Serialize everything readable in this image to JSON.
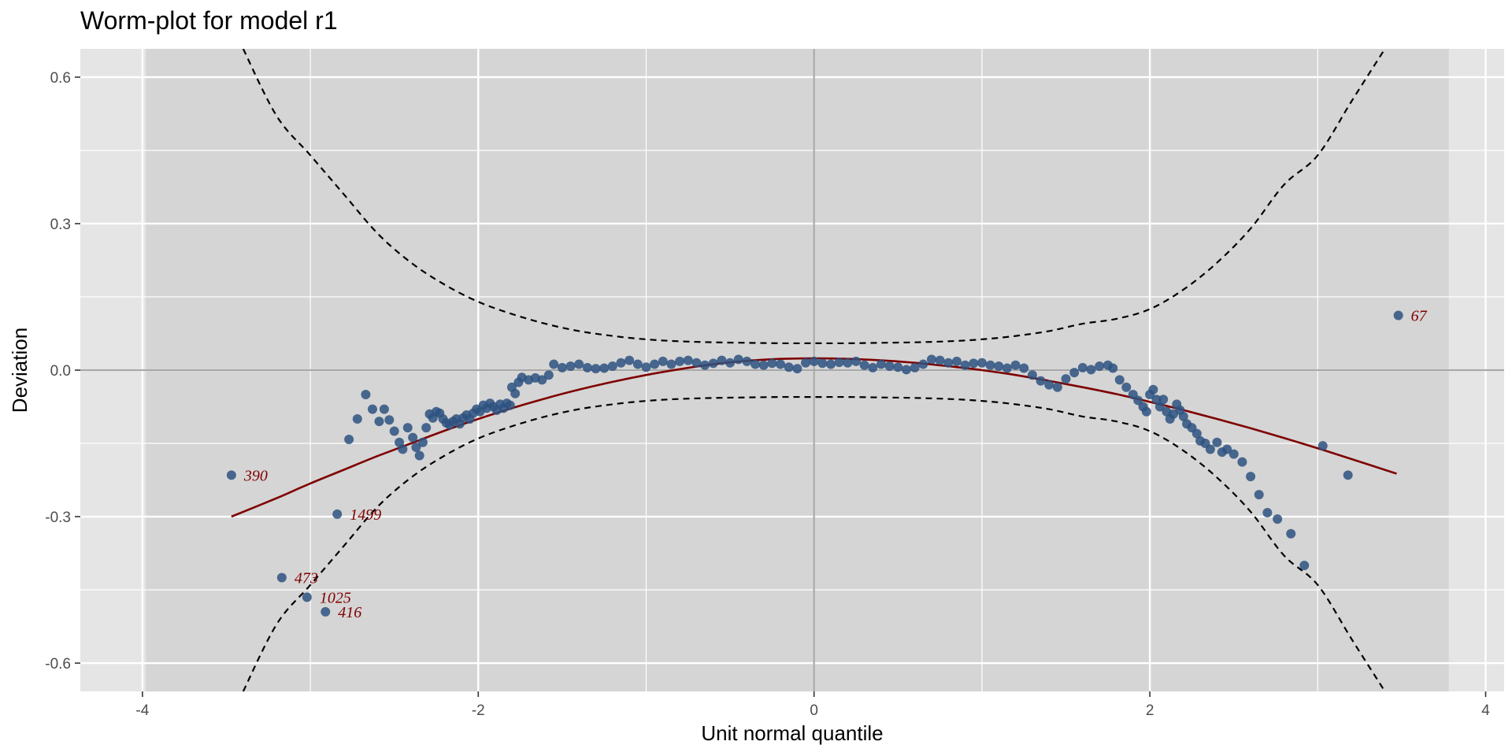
{
  "chart_data": {
    "type": "scatter",
    "title": "Worm-plot for model r1",
    "xlabel": "Unit normal quantile",
    "ylabel": "Deviation",
    "xlim": [
      -4.37,
      4.11
    ],
    "ylim": [
      -0.658,
      0.658
    ],
    "x_ticks": [
      -4,
      -2,
      0,
      2,
      4
    ],
    "x_tick_labels": [
      "-4",
      "-2",
      "0",
      "2",
      "4"
    ],
    "y_ticks": [
      -0.6,
      -0.3,
      0.0,
      0.3,
      0.6
    ],
    "y_tick_labels": [
      "-0.6",
      "-0.3",
      "0.0",
      "0.3",
      "0.6"
    ],
    "grid": true,
    "legend": "none",
    "shaded_region_x": [
      -3.98,
      3.78
    ],
    "reference_line_y": 0,
    "reference_line_x": 0,
    "confidence_band": {
      "style": "dashed",
      "x": [
        -3.4,
        -3.2,
        -3.0,
        -2.8,
        -2.6,
        -2.4,
        -2.2,
        -2.0,
        -1.8,
        -1.6,
        -1.4,
        -1.2,
        -1.0,
        -0.8,
        -0.6,
        -0.4,
        -0.2,
        0.0,
        0.2,
        0.4,
        0.6,
        0.8,
        1.0,
        1.2,
        1.4,
        1.6,
        1.8,
        2.0,
        2.2,
        2.4,
        2.6,
        2.8,
        3.0,
        3.2,
        3.4
      ],
      "upper": [
        0.658,
        0.52,
        0.44,
        0.36,
        0.28,
        0.22,
        0.175,
        0.14,
        0.115,
        0.095,
        0.08,
        0.07,
        0.063,
        0.059,
        0.057,
        0.056,
        0.055,
        0.055,
        0.055,
        0.056,
        0.057,
        0.059,
        0.063,
        0.07,
        0.08,
        0.095,
        0.105,
        0.125,
        0.165,
        0.22,
        0.29,
        0.38,
        0.44,
        0.55,
        0.658
      ],
      "lower": [
        -0.658,
        -0.52,
        -0.44,
        -0.36,
        -0.28,
        -0.22,
        -0.175,
        -0.14,
        -0.115,
        -0.095,
        -0.08,
        -0.07,
        -0.063,
        -0.059,
        -0.057,
        -0.056,
        -0.055,
        -0.055,
        -0.055,
        -0.056,
        -0.057,
        -0.059,
        -0.063,
        -0.07,
        -0.08,
        -0.095,
        -0.105,
        -0.125,
        -0.165,
        -0.22,
        -0.29,
        -0.38,
        -0.44,
        -0.55,
        -0.658
      ]
    },
    "fit_curve": {
      "color": "#7f0000",
      "x": [
        -3.47,
        -3.2,
        -3.0,
        -2.8,
        -2.6,
        -2.4,
        -2.2,
        -2.0,
        -1.8,
        -1.6,
        -1.4,
        -1.2,
        -1.0,
        -0.8,
        -0.6,
        -0.4,
        -0.2,
        0.0,
        0.2,
        0.4,
        0.6,
        0.8,
        1.0,
        1.2,
        1.4,
        1.6,
        1.8,
        2.0,
        2.2,
        2.4,
        2.6,
        2.8,
        3.0,
        3.2,
        3.47
      ],
      "y": [
        -0.3,
        -0.262,
        -0.232,
        -0.204,
        -0.176,
        -0.15,
        -0.124,
        -0.1,
        -0.078,
        -0.058,
        -0.04,
        -0.024,
        -0.01,
        0.002,
        0.012,
        0.019,
        0.023,
        0.024,
        0.023,
        0.02,
        0.015,
        0.008,
        0.0,
        -0.01,
        -0.022,
        -0.035,
        -0.049,
        -0.065,
        -0.082,
        -0.1,
        -0.119,
        -0.139,
        -0.16,
        -0.182,
        -0.212
      ]
    },
    "point_color": "#2e5280",
    "points": [
      [
        -3.47,
        -0.215
      ],
      [
        -3.17,
        -0.425
      ],
      [
        -3.02,
        -0.465
      ],
      [
        -2.91,
        -0.495
      ],
      [
        -2.84,
        -0.295
      ],
      [
        -2.77,
        -0.142
      ],
      [
        -2.72,
        -0.1
      ],
      [
        -2.67,
        -0.05
      ],
      [
        -2.63,
        -0.08
      ],
      [
        -2.59,
        -0.105
      ],
      [
        -2.56,
        -0.08
      ],
      [
        -2.53,
        -0.102
      ],
      [
        -2.5,
        -0.125
      ],
      [
        -2.47,
        -0.148
      ],
      [
        -2.45,
        -0.162
      ],
      [
        -2.42,
        -0.118
      ],
      [
        -2.39,
        -0.138
      ],
      [
        -2.37,
        -0.158
      ],
      [
        -2.35,
        -0.175
      ],
      [
        -2.33,
        -0.148
      ],
      [
        -2.31,
        -0.118
      ],
      [
        -2.29,
        -0.09
      ],
      [
        -2.27,
        -0.098
      ],
      [
        -2.25,
        -0.085
      ],
      [
        -2.23,
        -0.088
      ],
      [
        -2.21,
        -0.1
      ],
      [
        -2.19,
        -0.108
      ],
      [
        -2.17,
        -0.112
      ],
      [
        -2.15,
        -0.105
      ],
      [
        -2.13,
        -0.1
      ],
      [
        -2.11,
        -0.11
      ],
      [
        -2.09,
        -0.098
      ],
      [
        -2.07,
        -0.092
      ],
      [
        -2.05,
        -0.1
      ],
      [
        -2.03,
        -0.088
      ],
      [
        -2.01,
        -0.08
      ],
      [
        -1.99,
        -0.085
      ],
      [
        -1.97,
        -0.072
      ],
      [
        -1.95,
        -0.078
      ],
      [
        -1.93,
        -0.068
      ],
      [
        -1.91,
        -0.075
      ],
      [
        -1.89,
        -0.082
      ],
      [
        -1.87,
        -0.07
      ],
      [
        -1.85,
        -0.078
      ],
      [
        -1.83,
        -0.068
      ],
      [
        -1.81,
        -0.072
      ],
      [
        -1.8,
        -0.035
      ],
      [
        -1.78,
        -0.048
      ],
      [
        -1.76,
        -0.025
      ],
      [
        -1.74,
        -0.015
      ],
      [
        -1.7,
        -0.02
      ],
      [
        -1.66,
        -0.016
      ],
      [
        -1.62,
        -0.02
      ],
      [
        -1.58,
        -0.01
      ],
      [
        -1.55,
        0.012
      ],
      [
        -1.5,
        0.005
      ],
      [
        -1.45,
        0.008
      ],
      [
        -1.4,
        0.012
      ],
      [
        -1.35,
        0.005
      ],
      [
        -1.3,
        0.003
      ],
      [
        -1.25,
        0.004
      ],
      [
        -1.2,
        0.008
      ],
      [
        -1.15,
        0.015
      ],
      [
        -1.1,
        0.02
      ],
      [
        -1.05,
        0.012
      ],
      [
        -1.0,
        0.006
      ],
      [
        -0.95,
        0.012
      ],
      [
        -0.9,
        0.018
      ],
      [
        -0.85,
        0.012
      ],
      [
        -0.8,
        0.018
      ],
      [
        -0.75,
        0.02
      ],
      [
        -0.7,
        0.015
      ],
      [
        -0.65,
        0.01
      ],
      [
        -0.6,
        0.014
      ],
      [
        -0.55,
        0.02
      ],
      [
        -0.5,
        0.015
      ],
      [
        -0.45,
        0.022
      ],
      [
        -0.4,
        0.018
      ],
      [
        -0.35,
        0.012
      ],
      [
        -0.3,
        0.01
      ],
      [
        -0.25,
        0.014
      ],
      [
        -0.2,
        0.012
      ],
      [
        -0.15,
        0.006
      ],
      [
        -0.1,
        0.003
      ],
      [
        -0.05,
        0.015
      ],
      [
        0.0,
        0.018
      ],
      [
        0.05,
        0.014
      ],
      [
        0.1,
        0.012
      ],
      [
        0.15,
        0.016
      ],
      [
        0.2,
        0.015
      ],
      [
        0.25,
        0.018
      ],
      [
        0.3,
        0.01
      ],
      [
        0.35,
        0.005
      ],
      [
        0.4,
        0.012
      ],
      [
        0.45,
        0.008
      ],
      [
        0.5,
        0.006
      ],
      [
        0.55,
        0.001
      ],
      [
        0.6,
        0.005
      ],
      [
        0.65,
        0.012
      ],
      [
        0.7,
        0.022
      ],
      [
        0.75,
        0.02
      ],
      [
        0.8,
        0.015
      ],
      [
        0.85,
        0.018
      ],
      [
        0.9,
        0.01
      ],
      [
        0.95,
        0.014
      ],
      [
        1.0,
        0.015
      ],
      [
        1.05,
        0.01
      ],
      [
        1.1,
        0.008
      ],
      [
        1.15,
        0.004
      ],
      [
        1.2,
        0.01
      ],
      [
        1.25,
        0.004
      ],
      [
        1.3,
        -0.01
      ],
      [
        1.35,
        -0.022
      ],
      [
        1.4,
        -0.03
      ],
      [
        1.45,
        -0.035
      ],
      [
        1.5,
        -0.018
      ],
      [
        1.55,
        -0.005
      ],
      [
        1.6,
        0.005
      ],
      [
        1.65,
        0.001
      ],
      [
        1.7,
        0.008
      ],
      [
        1.75,
        0.01
      ],
      [
        1.78,
        0.004
      ],
      [
        1.82,
        -0.02
      ],
      [
        1.86,
        -0.035
      ],
      [
        1.9,
        -0.05
      ],
      [
        1.93,
        -0.062
      ],
      [
        1.96,
        -0.075
      ],
      [
        1.98,
        -0.085
      ],
      [
        2.0,
        -0.05
      ],
      [
        2.02,
        -0.04
      ],
      [
        2.04,
        -0.06
      ],
      [
        2.06,
        -0.075
      ],
      [
        2.08,
        -0.06
      ],
      [
        2.1,
        -0.085
      ],
      [
        2.12,
        -0.1
      ],
      [
        2.14,
        -0.09
      ],
      [
        2.16,
        -0.07
      ],
      [
        2.18,
        -0.082
      ],
      [
        2.2,
        -0.095
      ],
      [
        2.22,
        -0.11
      ],
      [
        2.25,
        -0.118
      ],
      [
        2.28,
        -0.13
      ],
      [
        2.3,
        -0.145
      ],
      [
        2.33,
        -0.15
      ],
      [
        2.36,
        -0.162
      ],
      [
        2.4,
        -0.148
      ],
      [
        2.43,
        -0.168
      ],
      [
        2.46,
        -0.162
      ],
      [
        2.5,
        -0.172
      ],
      [
        2.55,
        -0.188
      ],
      [
        2.6,
        -0.218
      ],
      [
        2.65,
        -0.255
      ],
      [
        2.7,
        -0.292
      ],
      [
        2.76,
        -0.305
      ],
      [
        2.84,
        -0.335
      ],
      [
        2.92,
        -0.4
      ],
      [
        3.03,
        -0.155
      ],
      [
        3.18,
        -0.215
      ],
      [
        3.48,
        0.112
      ]
    ],
    "annotations": [
      {
        "label": "390",
        "x": -3.47,
        "y": -0.215
      },
      {
        "label": "1499",
        "x": -2.84,
        "y": -0.295
      },
      {
        "label": "473",
        "x": -3.17,
        "y": -0.425
      },
      {
        "label": "1025",
        "x": -3.02,
        "y": -0.465
      },
      {
        "label": "416",
        "x": -2.91,
        "y": -0.495
      },
      {
        "label": "67",
        "x": 3.48,
        "y": 0.112
      }
    ]
  }
}
